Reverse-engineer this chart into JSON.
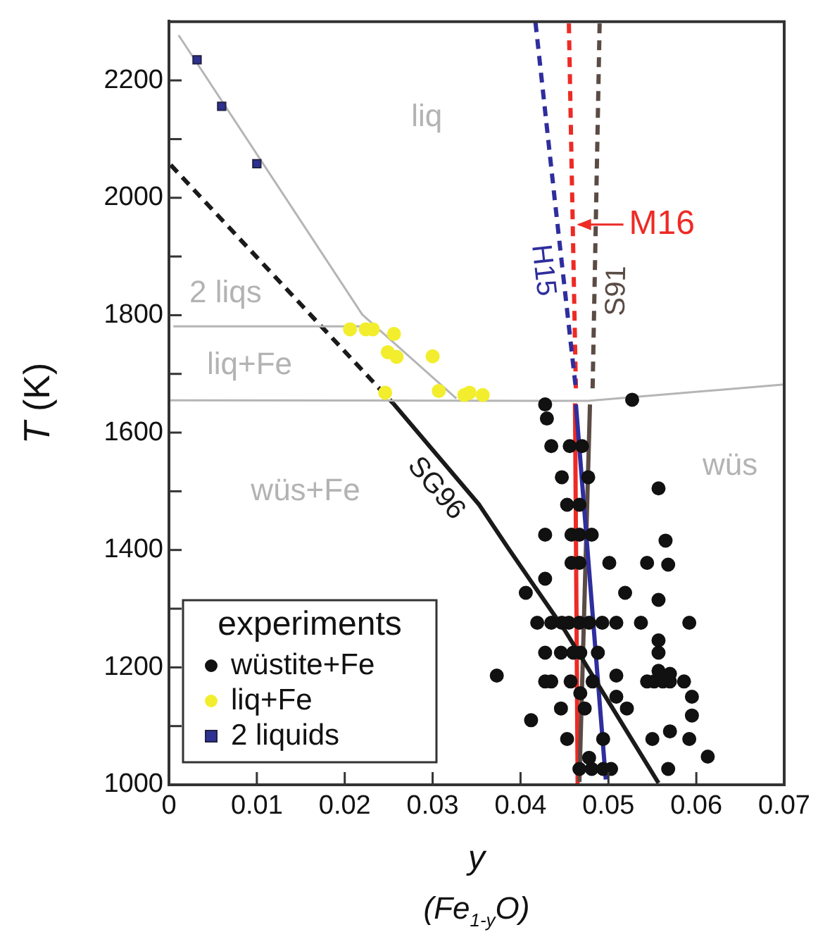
{
  "chart_data": {
    "type": "scatter",
    "xlabel": "y",
    "ylabel": "T (K)",
    "legend_title": "experiments",
    "legend": "bottom left",
    "grid": false,
    "xlim": [
      0,
      0.07
    ],
    "xticks": [
      0,
      0.01,
      0.02,
      0.03,
      0.04,
      0.05,
      0.06,
      0.07
    ],
    "ylim": [
      1000,
      2300
    ],
    "yticks": [
      1000,
      {
        "value": 1100,
        "label": null
      },
      1200,
      {
        "value": 1300,
        "label": null
      },
      1400,
      {
        "value": 1500,
        "label": null
      },
      1600,
      {
        "value": 1700,
        "label": null
      },
      1800,
      {
        "value": 1900,
        "label": null
      },
      2000,
      {
        "value": 2100,
        "label": null
      },
      2200
    ],
    "annotations": [
      "(Fe$_{1-y}$O)",
      "liq",
      "2 liqs",
      "liq+Fe",
      "wüs+Fe",
      "wüs"
    ],
    "series": [
      {
        "name": "wüstite+Fe",
        "marker": "circle",
        "color": "#111111",
        "x": [
          0.0428,
          0.043,
          0.0435,
          0.0456,
          0.047,
          0.0447,
          0.0477,
          0.0527,
          0.0453,
          0.0467,
          0.0428,
          0.0458,
          0.0467,
          0.0481,
          0.0458,
          0.0467,
          0.0501,
          0.0544,
          0.0568,
          0.0557,
          0.0565,
          0.0428,
          0.0406,
          0.0519,
          0.0557,
          0.0419,
          0.0435,
          0.0447,
          0.0455,
          0.0467,
          0.0478,
          0.0493,
          0.0509,
          0.0537,
          0.0592,
          0.0557,
          0.0557,
          0.0428,
          0.0446,
          0.046,
          0.0468,
          0.0488,
          0.0373,
          0.0428,
          0.0435,
          0.0457,
          0.0482,
          0.0544,
          0.0552,
          0.0562,
          0.057,
          0.0586,
          0.0509,
          0.0557,
          0.057,
          0.0468,
          0.0509,
          0.0595,
          0.0446,
          0.0473,
          0.0521,
          0.0595,
          0.0412,
          0.057,
          0.0453,
          0.0494,
          0.055,
          0.0592,
          0.0478,
          0.0613,
          0.0467,
          0.0481,
          0.0494,
          0.0503,
          0.0568
        ],
        "values": [
          1648,
          1624,
          1577,
          1577,
          1577,
          1524,
          1524,
          1656,
          1477,
          1477,
          1426,
          1426,
          1426,
          1426,
          1378,
          1378,
          1378,
          1378,
          1375,
          1505,
          1416,
          1351,
          1327,
          1327,
          1315,
          1276,
          1276,
          1276,
          1276,
          1276,
          1276,
          1276,
          1276,
          1276,
          1276,
          1246,
          1225,
          1225,
          1225,
          1225,
          1225,
          1225,
          1186,
          1176,
          1176,
          1176,
          1176,
          1176,
          1176,
          1176,
          1176,
          1176,
          1186,
          1194,
          1189,
          1156,
          1150,
          1150,
          1130,
          1130,
          1130,
          1118,
          1110,
          1091,
          1078,
          1078,
          1078,
          1078,
          1046,
          1048,
          1027,
          1027,
          1027,
          1027,
          1027
        ]
      },
      {
        "name": "liq+Fe",
        "marker": "circle",
        "color": "#f2ee2e",
        "x": [
          0.0206,
          0.0224,
          0.0232,
          0.0256,
          0.0249,
          0.0259,
          0.03,
          0.0246,
          0.0307,
          0.0336,
          0.0342,
          0.0357
        ],
        "values": [
          1776,
          1776,
          1776,
          1768,
          1737,
          1729,
          1730,
          1668,
          1671,
          1664,
          1668,
          1664
        ]
      },
      {
        "name": "2 liquids",
        "marker": "square",
        "color": "#2e3192",
        "x": [
          0.0032,
          0.006,
          0.01
        ],
        "values": [
          2235,
          2156,
          2058
        ]
      },
      {
        "type": "line",
        "line_style": "solid",
        "color": "#b5b5b5",
        "x": [
          0.0011,
          0.022,
          0.0327
        ],
        "values": [
          2277,
          1801,
          1658
        ]
      },
      {
        "type": "line",
        "line_style": "solid",
        "color": "#b5b5b5",
        "x": [
          0.0005,
          0.022
        ],
        "values": [
          1781,
          1781
        ]
      },
      {
        "type": "line",
        "line_style": "solid",
        "color": "#b5b5b5",
        "x": [
          0,
          0.0477,
          0.07
        ],
        "values": [
          1655,
          1654,
          1682
        ]
      },
      {
        "type": "line",
        "line_style": "dashed",
        "color": "#1a1a1a",
        "x": [
          0.0002,
          0.0255
        ],
        "values": [
          2056,
          1650
        ]
      },
      {
        "name": "SG96",
        "type": "line",
        "line_style": "solid",
        "color": "#1a1a1a",
        "x": [
          0.0255,
          0.0353,
          0.0386,
          0.045,
          0.0557
        ],
        "values": [
          1650,
          1477,
          1403,
          1264,
          1003
        ]
      },
      {
        "name": "H15",
        "type": "line",
        "line_style": "dashed",
        "color": "#2e2e9e",
        "x": [
          0.0417,
          0.0439,
          0.0463
        ],
        "values": [
          2299,
          1996,
          1674
        ]
      },
      {
        "type": "line",
        "line_style": "solid",
        "color": "#2e2e9e",
        "x": [
          0.0463,
          0.0497
        ],
        "values": [
          1648,
          1009
        ]
      },
      {
        "name": "S91",
        "type": "line",
        "line_style": "dashed",
        "color": "#5b4b45",
        "x": [
          0.049,
          0.0482
        ],
        "values": [
          2297,
          1674
        ]
      },
      {
        "type": "line",
        "line_style": "solid",
        "color": "#5b4b45",
        "x": [
          0.0479,
          0.0467
        ],
        "values": [
          1648,
          1005
        ]
      },
      {
        "name": "M16",
        "type": "line",
        "line_style": "dashed",
        "color": "#ee2a24",
        "x": [
          0.0455,
          0.0463
        ],
        "values": [
          2297,
          1674
        ]
      },
      {
        "type": "line",
        "line_style": "solid",
        "color": "#ee2a24",
        "x": [
          0.0462,
          0.0465
        ],
        "values": [
          1650,
          1000
        ]
      }
    ]
  }
}
